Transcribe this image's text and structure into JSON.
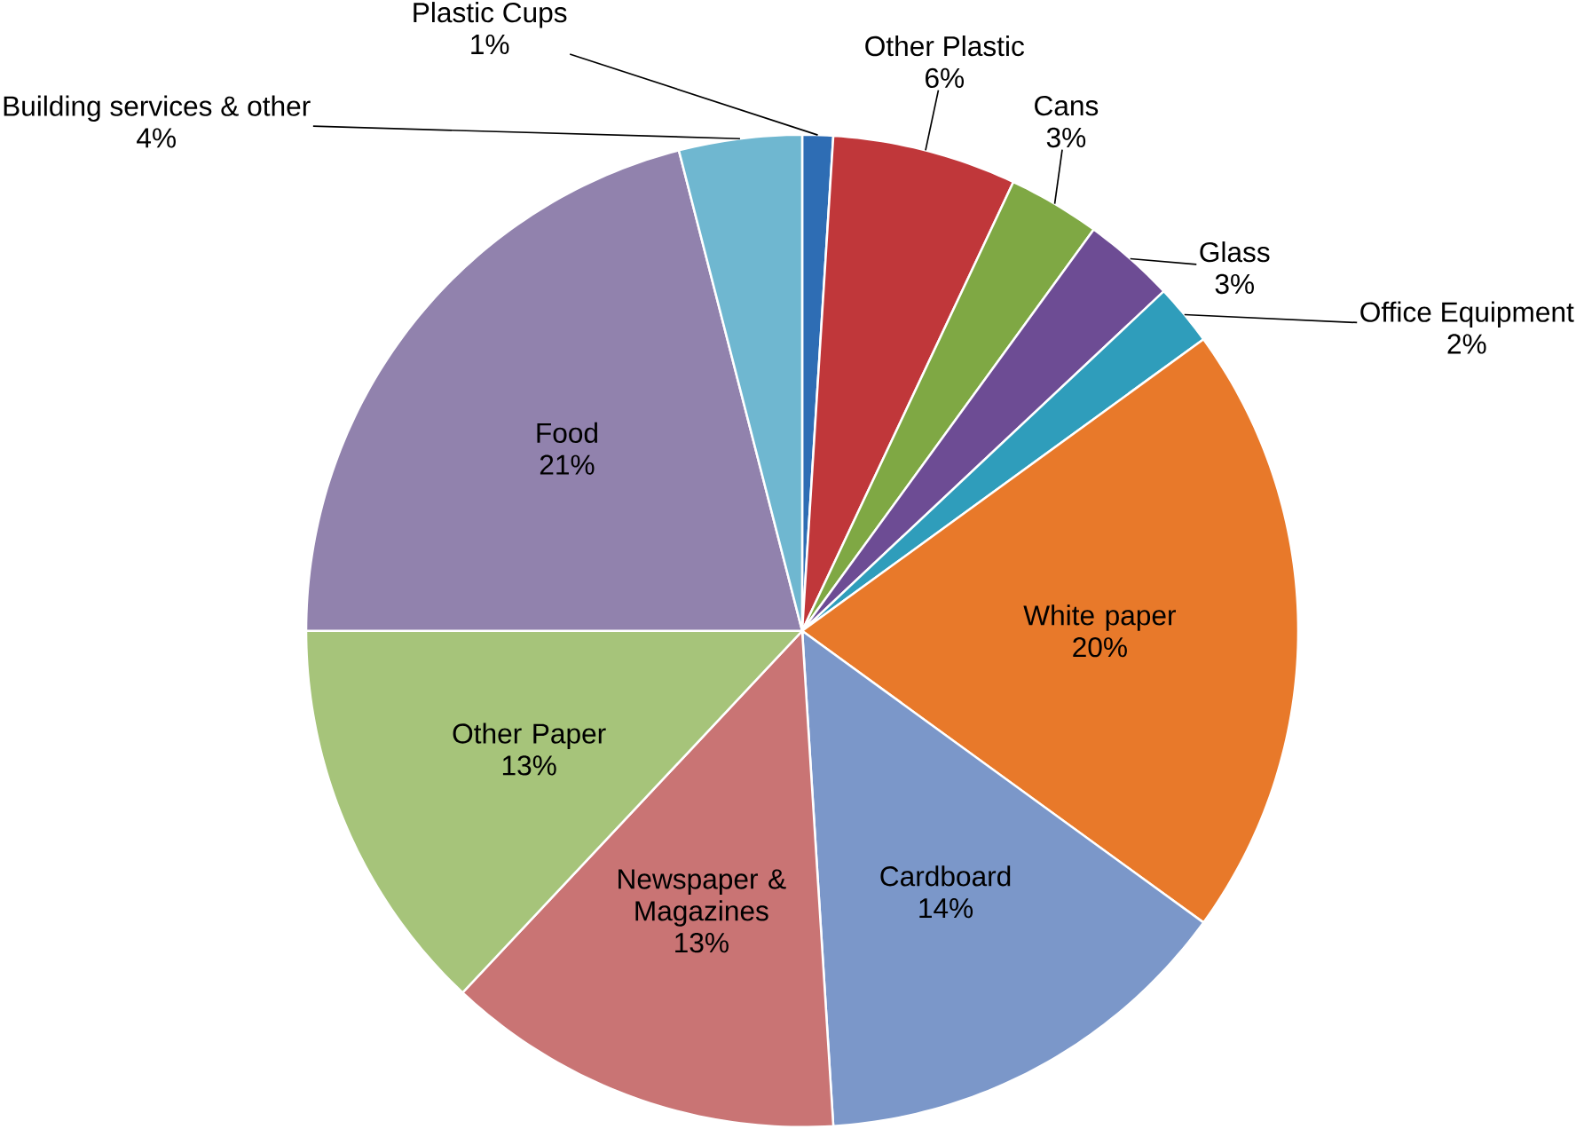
{
  "chart_data": {
    "type": "pie",
    "categories": [
      "Plastic Cups",
      "Other Plastic",
      "Cans",
      "Glass",
      "Office Equipment",
      "White paper",
      "Cardboard",
      "Newspaper & Magazines",
      "Other Paper",
      "Food",
      "Building services & other"
    ],
    "values": [
      1,
      6,
      3,
      3,
      2,
      20,
      14,
      13,
      13,
      21,
      4
    ],
    "value_labels": [
      "1%",
      "6%",
      "3%",
      "3%",
      "2%",
      "20%",
      "14%",
      "13%",
      "13%",
      "21%",
      "4%"
    ],
    "colors": [
      "#2e6db4",
      "#c0373a",
      "#7fa844",
      "#6d4c94",
      "#2f9dbb",
      "#e8792a",
      "#7b97c9",
      "#c97474",
      "#a6c47a",
      "#9182ad",
      "#6fb7d0"
    ]
  }
}
